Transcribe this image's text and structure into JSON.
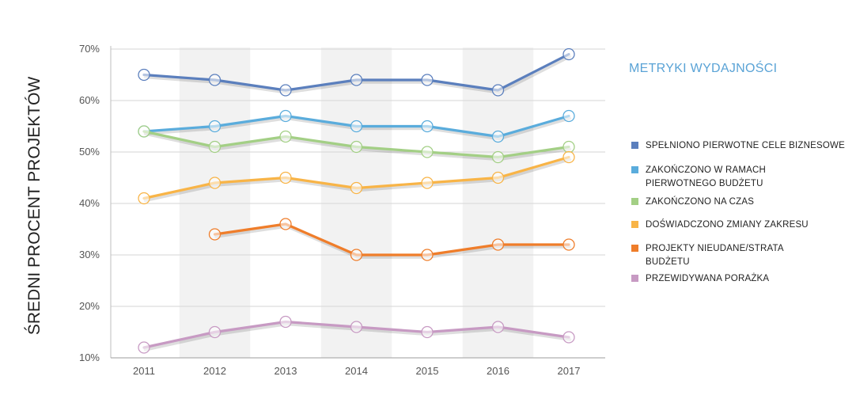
{
  "chart_data": {
    "type": "line",
    "title": "METRYKI WYDAJNOŚCI",
    "ylabel": "ŚREDNI PROCENT PROJEKTÓW",
    "xlabel": "",
    "ylim": [
      10,
      70
    ],
    "y_ticks": [
      "10%",
      "20%",
      "30%",
      "40%",
      "50%",
      "60%",
      "70%"
    ],
    "y_tick_values": [
      10,
      20,
      30,
      40,
      50,
      60,
      70
    ],
    "categories": [
      "2011",
      "2012",
      "2013",
      "2014",
      "2015",
      "2016",
      "2017"
    ],
    "grid": true,
    "legend_position": "right",
    "series": [
      {
        "name": "SPEŁNIONO PIERWOTNE CELE BIZNESOWE",
        "color": "#5b7fbd",
        "values": [
          65,
          64,
          62,
          64,
          64,
          62,
          69
        ]
      },
      {
        "name": "ZAKOŃCZONO W RAMACH PIERWOTNEGO BUDŻETU",
        "color": "#5aacdc",
        "values": [
          54,
          55,
          57,
          55,
          55,
          53,
          57
        ]
      },
      {
        "name": "ZAKOŃCZONO NA CZAS",
        "color": "#a3cf85",
        "values": [
          54,
          51,
          53,
          51,
          50,
          49,
          51
        ]
      },
      {
        "name": "DOŚWIADCZONO ZMIANY ZAKRESU",
        "color": "#f8b447",
        "values": [
          41,
          44,
          45,
          43,
          44,
          45,
          49
        ]
      },
      {
        "name": "PROJEKTY NIEUDANE/STRATA BUDŻETU",
        "color": "#ef7d2a",
        "values": [
          null,
          34,
          36,
          30,
          30,
          32,
          32
        ]
      },
      {
        "name": "PRZEWIDYWANA PORAŻKA",
        "color": "#c79ac3",
        "values": [
          12,
          15,
          17,
          16,
          15,
          16,
          14
        ]
      }
    ]
  }
}
